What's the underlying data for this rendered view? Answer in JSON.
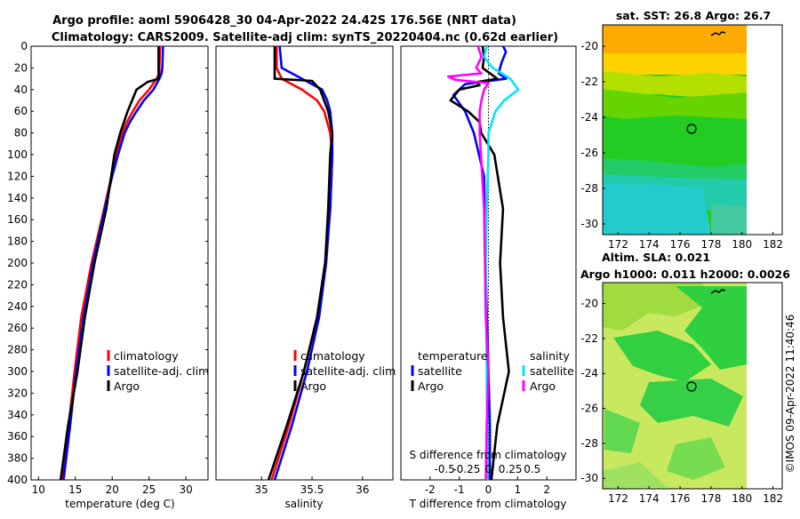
{
  "titles": {
    "line1": "Argo profile: aoml 5906428_30 04-Apr-2022 24.42S 176.56E (NRT data)",
    "line2": "Climatology: CARS2009. Satellite-adj clim: synTS_20220404.nc (0.62d earlier)"
  },
  "depth_ticks": [
    "0",
    "20",
    "40",
    "60",
    "80",
    "100",
    "120",
    "140",
    "160",
    "180",
    "200",
    "220",
    "240",
    "260",
    "280",
    "300",
    "320",
    "340",
    "360",
    "380",
    "400"
  ],
  "colors": {
    "climatology": "#ff0000",
    "satellite": "#0000ff",
    "argo": "#000000",
    "sal_satellite": "#00e5ff",
    "sal_argo": "#ff00ff"
  },
  "chart_data": [
    {
      "type": "line",
      "id": "temperature",
      "xlabel": "temperature (deg C)",
      "ylabel": "depth",
      "xlim": [
        9,
        33
      ],
      "ylim": [
        0,
        400
      ],
      "xticks": [
        10,
        15,
        20,
        25,
        30
      ],
      "legend": [
        "climatology",
        "satellite-adj. clim",
        "Argo"
      ],
      "series": [
        {
          "name": "climatology",
          "color": "#ff0000",
          "depth": [
            0,
            20,
            25,
            30,
            40,
            50,
            60,
            70,
            80,
            100,
            120,
            150,
            200,
            250,
            300,
            350,
            400
          ],
          "values": [
            26.5,
            26.4,
            26.4,
            26.0,
            25.0,
            23.7,
            22.8,
            22.0,
            21.4,
            20.6,
            19.9,
            18.9,
            17.2,
            15.8,
            14.9,
            14.1,
            13.2
          ]
        },
        {
          "name": "satellite-adj. clim",
          "color": "#0000ff",
          "depth": [
            0,
            20,
            25,
            30,
            40,
            50,
            60,
            70,
            80,
            100,
            120,
            150,
            200,
            250,
            300,
            350,
            400
          ],
          "values": [
            26.9,
            26.8,
            26.7,
            26.4,
            25.6,
            24.3,
            23.3,
            22.4,
            21.7,
            20.8,
            20.0,
            19.0,
            17.4,
            16.1,
            15.1,
            14.3,
            13.4
          ]
        },
        {
          "name": "Argo",
          "color": "#000000",
          "depth": [
            0,
            20,
            30,
            33,
            40,
            50,
            60,
            80,
            100,
            150,
            200,
            250,
            300,
            350,
            400
          ],
          "values": [
            26.3,
            26.3,
            26.3,
            24.8,
            23.3,
            22.7,
            22.1,
            21.1,
            20.3,
            19.2,
            17.6,
            16.3,
            15.3,
            14.0,
            13.0
          ]
        }
      ]
    },
    {
      "type": "line",
      "id": "salinity",
      "xlabel": "salinity",
      "xlim": [
        34.55,
        36.3
      ],
      "ylim": [
        0,
        400
      ],
      "xticks": [
        "35",
        "35.5",
        "36"
      ],
      "legend": [
        "climatology",
        "satellite-adj. clim",
        "Argo"
      ],
      "series": [
        {
          "name": "climatology",
          "color": "#ff0000",
          "depth": [
            0,
            20,
            30,
            40,
            50,
            60,
            80,
            100,
            150,
            200,
            250,
            300,
            350,
            400
          ],
          "values": [
            35.15,
            35.15,
            35.2,
            35.4,
            35.55,
            35.62,
            35.68,
            35.7,
            35.68,
            35.63,
            35.55,
            35.42,
            35.27,
            35.1
          ]
        },
        {
          "name": "satellite-adj. clim",
          "color": "#0000ff",
          "depth": [
            0,
            20,
            30,
            40,
            50,
            60,
            80,
            100,
            150,
            200,
            250,
            300,
            350,
            400
          ],
          "values": [
            35.18,
            35.2,
            35.4,
            35.6,
            35.65,
            35.68,
            35.7,
            35.7,
            35.68,
            35.64,
            35.57,
            35.45,
            35.3,
            35.13
          ]
        },
        {
          "name": "Argo",
          "color": "#000000",
          "depth": [
            0,
            30,
            32,
            40,
            50,
            60,
            80,
            100,
            150,
            200,
            250,
            300,
            350,
            400
          ],
          "values": [
            35.13,
            35.13,
            35.5,
            35.58,
            35.62,
            35.66,
            35.7,
            35.68,
            35.66,
            35.63,
            35.55,
            35.42,
            35.25,
            35.07
          ]
        }
      ]
    },
    {
      "type": "line",
      "id": "difference",
      "xlabel": "T difference from climatology",
      "xlabel_top": "S difference from climatology",
      "xlim": [
        -3,
        3
      ],
      "ylim": [
        0,
        400
      ],
      "xticks": [
        "-2",
        "-1",
        "0",
        "1",
        "2"
      ],
      "xticks_top": [
        "-0.5",
        "-0.25",
        "0",
        "0.25",
        "0.5"
      ],
      "legend_temperature_header": "temperature",
      "legend_salinity_header": "salinity",
      "legend": [
        "satellite",
        "Argo",
        "satellite",
        "Argo"
      ],
      "series": [
        {
          "name": "temperature satellite",
          "color": "#0000ff",
          "depth": [
            0,
            5,
            15,
            20,
            25,
            30,
            35,
            45,
            60,
            80,
            120,
            200,
            300,
            350,
            400
          ],
          "values": [
            0.5,
            0.6,
            0.45,
            0.4,
            0.35,
            0.6,
            -0.8,
            -1.2,
            -0.8,
            -0.5,
            -0.15,
            -0.1,
            0.0,
            0.05,
            0.05
          ]
        },
        {
          "name": "temperature Argo",
          "color": "#000000",
          "depth": [
            0,
            10,
            20,
            30,
            33,
            36,
            40,
            50,
            60,
            70,
            80,
            100,
            150,
            200,
            250,
            300,
            350,
            400
          ],
          "values": [
            -0.2,
            -0.15,
            -0.2,
            0.3,
            -0.4,
            -0.3,
            -1.0,
            -1.3,
            -0.7,
            -0.3,
            -0.25,
            0.2,
            0.5,
            0.4,
            0.5,
            0.7,
            0.3,
            0.1
          ]
        },
        {
          "name": "salinity satellite",
          "color": "#00e5ff",
          "depth": [
            0,
            10,
            20,
            30,
            40,
            50,
            60,
            80,
            100,
            150,
            200,
            300,
            400
          ],
          "values": [
            -0.02,
            -0.05,
            0.05,
            0.25,
            0.34,
            0.18,
            0.08,
            0.0,
            0.0,
            -0.02,
            -0.03,
            -0.02,
            -0.01
          ]
        },
        {
          "name": "salinity Argo",
          "color": "#ff00ff",
          "depth": [
            0,
            10,
            20,
            25,
            28,
            31,
            34,
            40,
            50,
            60,
            80,
            150,
            250,
            300,
            350,
            400
          ],
          "values": [
            -0.12,
            -0.08,
            -0.14,
            -0.08,
            -0.46,
            -0.38,
            0.0,
            -0.05,
            -0.08,
            -0.1,
            -0.1,
            -0.05,
            -0.03,
            0.0,
            -0.02,
            -0.03
          ]
        }
      ]
    },
    {
      "type": "heatmap",
      "id": "sst-map",
      "title": "sat. SST: 26.8 Argo: 26.7",
      "xticks": [
        "172",
        "174",
        "176",
        "178",
        "180",
        "182"
      ],
      "yticks": [
        "-20",
        "-22",
        "-24",
        "-26",
        "-28",
        "-30"
      ],
      "argo_position": [
        176.56,
        -24.42
      ]
    },
    {
      "type": "heatmap",
      "id": "sla-map",
      "title_line1": "Altim. SLA: 0.021",
      "title_line2": "Argo h1000: 0.011 h2000: 0.0026",
      "xticks": [
        "172",
        "174",
        "176",
        "178",
        "180",
        "182"
      ],
      "yticks": [
        "-20",
        "-22",
        "-24",
        "-26",
        "-28",
        "-30"
      ],
      "argo_position": [
        176.56,
        -24.42
      ]
    }
  ],
  "timestamp": "©IMOS 09-Apr-2022 11:40:46"
}
